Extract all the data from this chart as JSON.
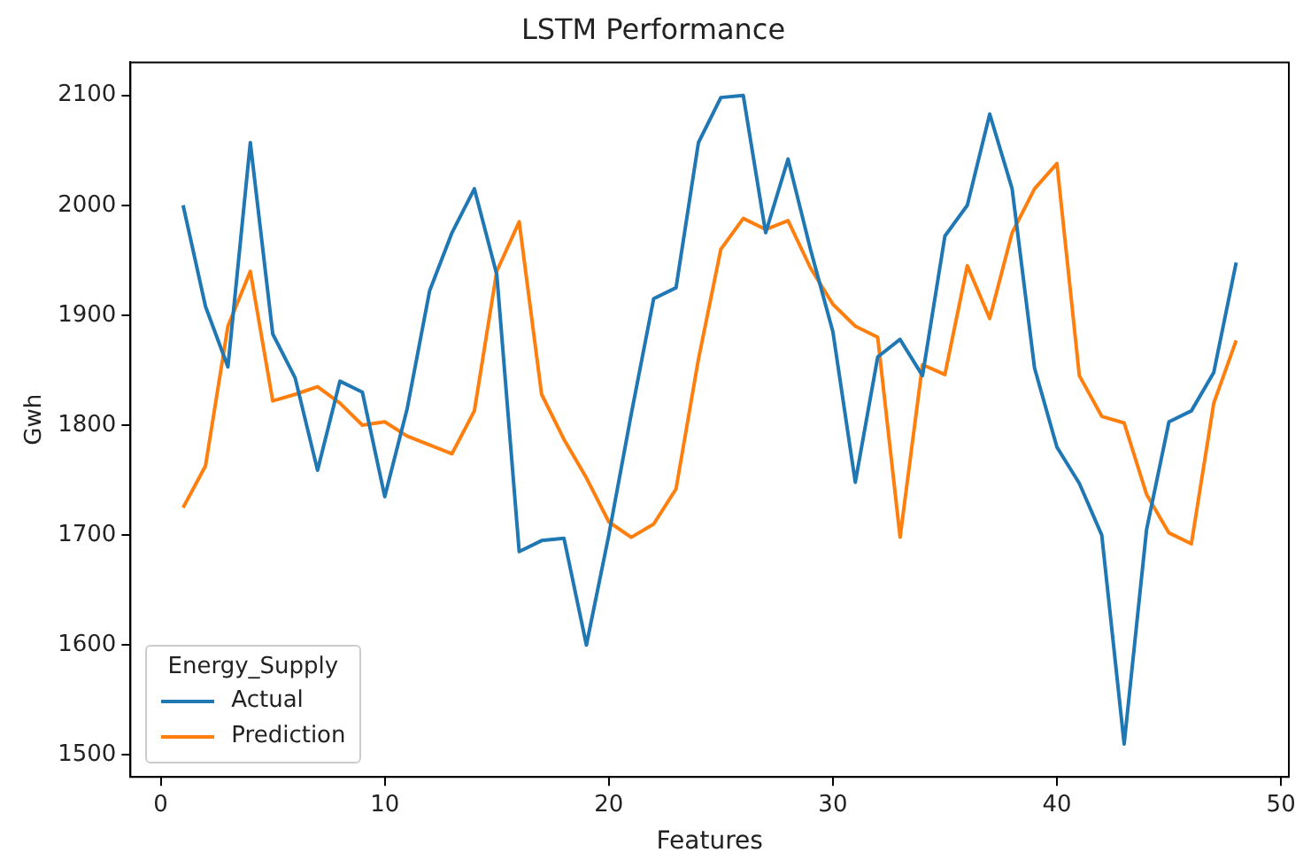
{
  "chart_data": {
    "type": "line",
    "title": "LSTM Performance",
    "xlabel": "Features",
    "ylabel": "Gwh",
    "legend_title": "Energy_Supply",
    "x": [
      1,
      2,
      3,
      4,
      5,
      6,
      7,
      8,
      9,
      10,
      11,
      12,
      13,
      14,
      15,
      16,
      17,
      18,
      19,
      20,
      21,
      22,
      23,
      24,
      25,
      26,
      27,
      28,
      29,
      30,
      31,
      32,
      33,
      34,
      35,
      36,
      37,
      38,
      39,
      40,
      41,
      42,
      43,
      44,
      45,
      46,
      47,
      48
    ],
    "series": [
      {
        "name": "Actual",
        "color": "#1f77b4",
        "values": [
          2000,
          1908,
          1853,
          2057,
          1883,
          1843,
          1759,
          1840,
          1830,
          1735,
          1815,
          1922,
          1975,
          2015,
          1937,
          1685,
          1695,
          1697,
          1600,
          1700,
          1810,
          1915,
          1925,
          2057,
          2098,
          2100,
          1975,
          2042,
          1960,
          1885,
          1748,
          1862,
          1878,
          1845,
          1972,
          2000,
          2083,
          2015,
          1852,
          1780,
          1747,
          1700,
          1510,
          1705,
          1803,
          1813,
          1848,
          1948
        ]
      },
      {
        "name": "Prediction",
        "color": "#ff7f0e",
        "values": [
          1725,
          1763,
          1890,
          1940,
          1822,
          1828,
          1835,
          1820,
          1800,
          1803,
          1790,
          1782,
          1774,
          1813,
          1940,
          1985,
          1828,
          1787,
          1752,
          1712,
          1698,
          1710,
          1742,
          1860,
          1960,
          1988,
          1978,
          1986,
          1943,
          1910,
          1890,
          1880,
          1698,
          1855,
          1846,
          1945,
          1897,
          1975,
          2015,
          2038,
          1845,
          1808,
          1802,
          1737,
          1702,
          1692,
          1820,
          1877
        ]
      }
    ],
    "xlim": [
      -1.35,
      50.35
    ],
    "xticks": [
      0,
      10,
      20,
      30,
      40,
      50
    ],
    "ylim": [
      1480,
      2130
    ],
    "yticks": [
      1500,
      1600,
      1700,
      1800,
      1900,
      2000,
      2100
    ],
    "grid": false,
    "legend": "bottom left",
    "marker": "none",
    "line_style": "solid"
  }
}
